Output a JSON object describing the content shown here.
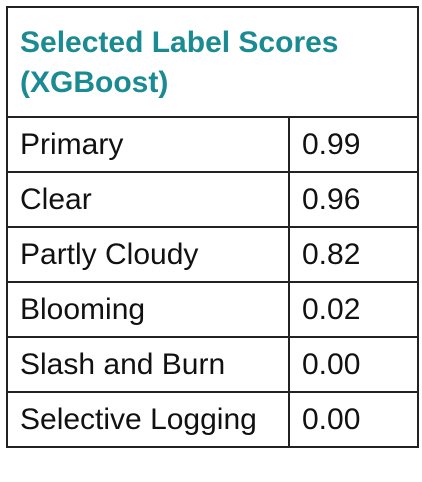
{
  "table": {
    "title_line1": "Selected Label Scores",
    "title_line2": "(XGBoost)",
    "title_color": "#1a8a93",
    "rows": [
      {
        "label": "Primary",
        "score": "0.99"
      },
      {
        "label": "Clear",
        "score": "0.96"
      },
      {
        "label": "Partly Cloudy",
        "score": "0.82"
      },
      {
        "label": "Blooming",
        "score": "0.02"
      },
      {
        "label": "Slash and Burn",
        "score": "0.00"
      },
      {
        "label": "Selective Logging",
        "score": "0.00"
      }
    ]
  }
}
